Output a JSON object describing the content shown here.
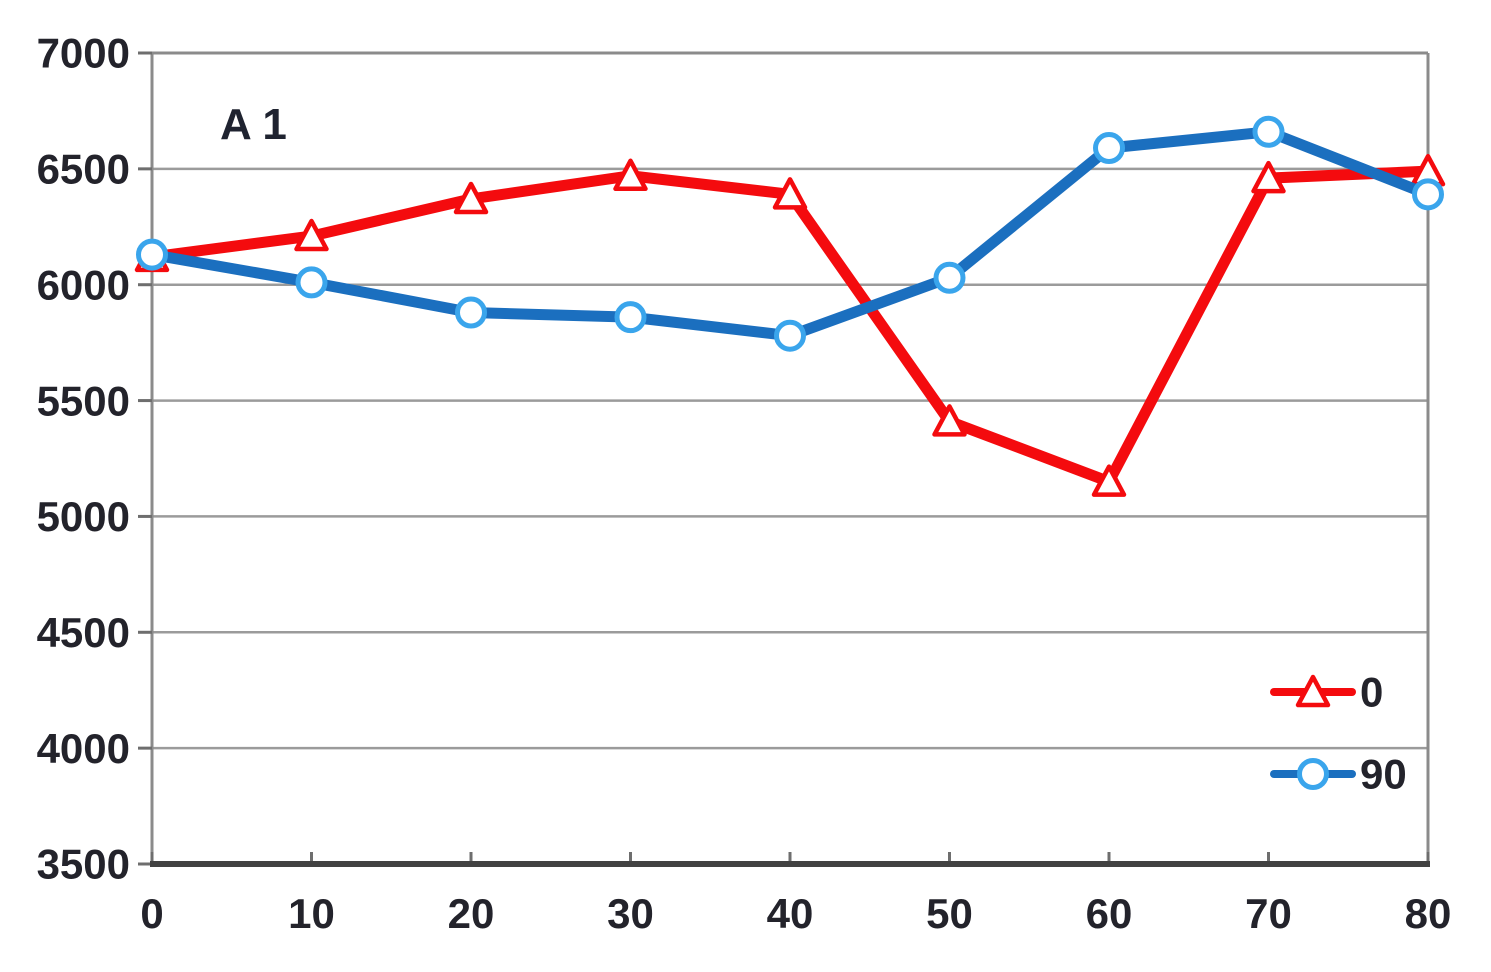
{
  "chart_data": {
    "type": "line",
    "title": "A 1",
    "xlabel": "",
    "ylabel": "",
    "x": [
      0,
      10,
      20,
      30,
      40,
      50,
      60,
      70,
      80
    ],
    "x_tick_labels": [
      "0",
      "10",
      "20",
      "30",
      "40",
      "50",
      "60",
      "70",
      "80"
    ],
    "y_tick_labels": [
      "3500",
      "4000",
      "4500",
      "5000",
      "5500",
      "6000",
      "6500",
      "7000"
    ],
    "xlim": [
      0,
      80
    ],
    "ylim": [
      3500,
      7000
    ],
    "y_tick_step": 500,
    "x_tick_step": 10,
    "grid": "horizontal gridlines every 500, boxed plot area",
    "legend_position": "inside right, lower middle",
    "series": [
      {
        "name": "0",
        "color": "#f40b0e",
        "marker": "triangle",
        "marker_color": "#f40b0e",
        "values": [
          6120,
          6210,
          6370,
          6470,
          6390,
          5410,
          5150,
          6460,
          6490
        ]
      },
      {
        "name": "90",
        "color": "#1b6fbf",
        "marker": "circle",
        "marker_color": "#3aa5ec",
        "values": [
          6130,
          6010,
          5880,
          5860,
          5780,
          6030,
          6590,
          6660,
          6390
        ]
      }
    ]
  },
  "style": {
    "background": "#ffffff",
    "text_color": "#23232b",
    "grid_color": "#9b9b9b",
    "border_color": "#8b8b8b",
    "axis_color": "#424242",
    "tick_color": "#6e6e6e"
  }
}
